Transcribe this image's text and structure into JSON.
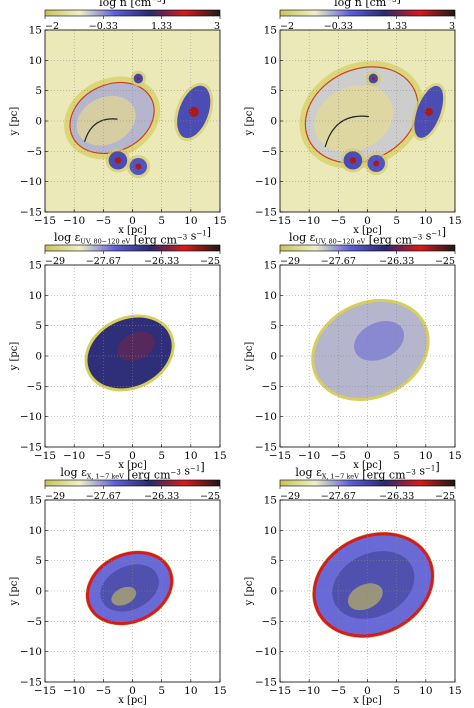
{
  "colormap": {
    "stops": [
      "#c9c25a",
      "#efefc8",
      "#5d5fd8",
      "#2a2a6e",
      "#d81a1a",
      "#1a1a1a"
    ],
    "background_low": "#efefc8"
  },
  "panels": [
    {
      "id": "density-early",
      "colorbar": {
        "label_prefix": "log n",
        "label_sub": "",
        "label_unit": "[cm",
        "label_sup": "−3",
        "label_close": "]",
        "ticks": [
          "−2",
          "−0.33",
          "1.33",
          "3"
        ],
        "range": [
          -2,
          3
        ]
      },
      "xlabel": "x [pc]",
      "ylabel": "y [pc]",
      "xticks": [
        "−15",
        "−10",
        "−5",
        "0",
        "5",
        "10",
        "15"
      ],
      "yticks": [
        "−15",
        "−10",
        "−5",
        "0",
        "5",
        "10",
        "15"
      ],
      "features": [
        {
          "kind": "shell",
          "cx": -3.5,
          "cy": 0.5,
          "rx": 7.5,
          "ry": 5.5,
          "rot": -25,
          "level": 0.62
        },
        {
          "kind": "cloud",
          "cx": 10.5,
          "cy": 1.5,
          "rx": 2.5,
          "ry": 4.5,
          "rot": 20,
          "level": 0.85
        },
        {
          "kind": "cloud",
          "cx": -2.5,
          "cy": -6.5,
          "rx": 1.6,
          "ry": 1.5,
          "rot": 0,
          "level": 0.85
        },
        {
          "kind": "cloud",
          "cx": 1.0,
          "cy": -7.5,
          "rx": 1.5,
          "ry": 1.4,
          "rot": 0,
          "level": 0.8
        },
        {
          "kind": "cloud",
          "cx": 1.0,
          "cy": 7.0,
          "rx": 0.8,
          "ry": 0.8,
          "rot": 0,
          "level": 0.9
        }
      ]
    },
    {
      "id": "density-late",
      "colorbar": {
        "label_prefix": "log n",
        "label_sub": "",
        "label_unit": "[cm",
        "label_sup": "−3",
        "label_close": "]",
        "ticks": [
          "−2",
          "−0.33",
          "1.33",
          "3"
        ],
        "range": [
          -2,
          3
        ]
      },
      "xlabel": "x [pc]",
      "ylabel": "y [pc]",
      "xticks": [
        "−15",
        "−10",
        "−5",
        "0",
        "5",
        "10",
        "15"
      ],
      "yticks": [
        "−15",
        "−10",
        "−5",
        "0",
        "5",
        "10",
        "15"
      ],
      "features": [
        {
          "kind": "shell",
          "cx": -1.0,
          "cy": 1.0,
          "rx": 10.0,
          "ry": 7.5,
          "rot": -25,
          "level": 0.55
        },
        {
          "kind": "cloud",
          "cx": 10.5,
          "cy": 1.5,
          "rx": 2.0,
          "ry": 4.5,
          "rot": 20,
          "level": 0.85
        },
        {
          "kind": "cloud",
          "cx": -2.5,
          "cy": -6.5,
          "rx": 1.6,
          "ry": 1.5,
          "rot": 0,
          "level": 0.85
        },
        {
          "kind": "cloud",
          "cx": 1.5,
          "cy": -7.0,
          "rx": 1.5,
          "ry": 1.4,
          "rot": 0,
          "level": 0.8
        },
        {
          "kind": "cloud",
          "cx": 1.0,
          "cy": 7.0,
          "rx": 0.8,
          "ry": 0.8,
          "rot": 0,
          "level": 0.9
        }
      ]
    },
    {
      "id": "uv-early",
      "colorbar": {
        "label_prefix": "log ε",
        "label_sub": "UV, 80−120 eV",
        "label_unit": "[erg cm",
        "label_sup": "−3",
        "label_close": " s",
        "label_sup2": "−1",
        "label_end": "]",
        "ticks": [
          "−29",
          "−27.67",
          "−26.33",
          "−25"
        ],
        "range": [
          -29,
          -25
        ]
      },
      "xlabel": "x [pc]",
      "ylabel": "y [pc]",
      "xticks": [
        "−15",
        "−10",
        "−5",
        "0",
        "5",
        "10",
        "15"
      ],
      "yticks": [
        "−15",
        "−10",
        "−5",
        "0",
        "5",
        "10",
        "15"
      ],
      "features": [
        {
          "kind": "emission",
          "cx": -0.5,
          "cy": 0.5,
          "rx": 7.5,
          "ry": 5.5,
          "rot": -25,
          "level": 0.58
        }
      ]
    },
    {
      "id": "uv-late",
      "colorbar": {
        "label_prefix": "log ε",
        "label_sub": "UV, 80−120 eV",
        "label_unit": "[erg cm",
        "label_sup": "−3",
        "label_close": " s",
        "label_sup2": "−1",
        "label_end": "]",
        "ticks": [
          "−29",
          "−27.67",
          "−26.33",
          "−25"
        ],
        "range": [
          -29,
          -25
        ]
      },
      "xlabel": "x [pc]",
      "ylabel": "y [pc]",
      "xticks": [
        "−15",
        "−10",
        "−5",
        "0",
        "5",
        "10",
        "15"
      ],
      "yticks": [
        "−15",
        "−10",
        "−5",
        "0",
        "5",
        "10",
        "15"
      ],
      "features": [
        {
          "kind": "emission",
          "cx": 0.5,
          "cy": 1.0,
          "rx": 10.0,
          "ry": 7.5,
          "rot": -25,
          "level": 0.28
        }
      ]
    },
    {
      "id": "xray-early",
      "colorbar": {
        "label_prefix": "log ε",
        "label_sub": "X, 1−7 keV",
        "label_unit": "[erg cm",
        "label_sup": "−3",
        "label_close": " s",
        "label_sup2": "−1",
        "label_end": "]",
        "ticks": [
          "−29",
          "−27.67",
          "−26.33",
          "−25"
        ],
        "range": [
          -29,
          -25
        ]
      },
      "xlabel": "x [pc]",
      "ylabel": "y [pc]",
      "xticks": [
        "−15",
        "−10",
        "−5",
        "0",
        "5",
        "10",
        "15"
      ],
      "yticks": [
        "−15",
        "−10",
        "−5",
        "0",
        "5",
        "10",
        "15"
      ],
      "features": [
        {
          "kind": "xray",
          "cx": -0.5,
          "cy": 0.5,
          "rx": 7.5,
          "ry": 5.5,
          "rot": -25,
          "level": 0.62
        }
      ]
    },
    {
      "id": "xray-late",
      "colorbar": {
        "label_prefix": "log ε",
        "label_sub": "X, 1−7 keV",
        "label_unit": "[erg cm",
        "label_sup": "−3",
        "label_close": " s",
        "label_sup2": "−1",
        "label_end": "]",
        "ticks": [
          "−29",
          "−27.67",
          "−26.33",
          "−25"
        ],
        "range": [
          -29,
          -25
        ]
      },
      "xlabel": "x [pc]",
      "ylabel": "y [pc]",
      "xticks": [
        "−15",
        "−10",
        "−5",
        "0",
        "5",
        "10",
        "15"
      ],
      "yticks": [
        "−15",
        "−10",
        "−5",
        "0",
        "5",
        "10",
        "15"
      ],
      "features": [
        {
          "kind": "xray",
          "cx": 1.0,
          "cy": 1.0,
          "rx": 10.5,
          "ry": 8.0,
          "rot": -25,
          "level": 0.55
        }
      ]
    }
  ],
  "chart_data": [
    {
      "type": "heatmap",
      "title": "log n [cm−3]",
      "xlabel": "x [pc]",
      "ylabel": "y [pc]",
      "xlim": [
        -15,
        15
      ],
      "ylim": [
        -15,
        15
      ],
      "colorbar_range": [
        -2,
        3
      ],
      "colorbar_ticks": [
        -2,
        -0.33,
        1.33,
        3
      ],
      "grid": true
    },
    {
      "type": "heatmap",
      "title": "log n [cm−3]",
      "xlabel": "x [pc]",
      "ylabel": "y [pc]",
      "xlim": [
        -15,
        15
      ],
      "ylim": [
        -15,
        15
      ],
      "colorbar_range": [
        -2,
        3
      ],
      "colorbar_ticks": [
        -2,
        -0.33,
        1.33,
        3
      ],
      "grid": true
    },
    {
      "type": "heatmap",
      "title": "log εUV, 80−120 eV [erg cm−3 s−1]",
      "xlabel": "x [pc]",
      "ylabel": "y [pc]",
      "xlim": [
        -15,
        15
      ],
      "ylim": [
        -15,
        15
      ],
      "colorbar_range": [
        -29,
        -25
      ],
      "colorbar_ticks": [
        -29,
        -27.67,
        -26.33,
        -25
      ],
      "grid": true
    },
    {
      "type": "heatmap",
      "title": "log εUV, 80−120 eV [erg cm−3 s−1]",
      "xlabel": "x [pc]",
      "ylabel": "y [pc]",
      "xlim": [
        -15,
        15
      ],
      "ylim": [
        -15,
        15
      ],
      "colorbar_range": [
        -29,
        -25
      ],
      "colorbar_ticks": [
        -29,
        -27.67,
        -26.33,
        -25
      ],
      "grid": true
    },
    {
      "type": "heatmap",
      "title": "log εX, 1−7 keV [erg cm−3 s−1]",
      "xlabel": "x [pc]",
      "ylabel": "y [pc]",
      "xlim": [
        -15,
        15
      ],
      "ylim": [
        -15,
        15
      ],
      "colorbar_range": [
        -29,
        -25
      ],
      "colorbar_ticks": [
        -29,
        -27.67,
        -26.33,
        -25
      ],
      "grid": true
    },
    {
      "type": "heatmap",
      "title": "log εX, 1−7 keV [erg cm−3 s−1]",
      "xlabel": "x [pc]",
      "ylabel": "y [pc]",
      "xlim": [
        -15,
        15
      ],
      "ylim": [
        -15,
        15
      ],
      "colorbar_range": [
        -29,
        -25
      ],
      "colorbar_ticks": [
        -29,
        -27.67,
        -26.33,
        -25
      ],
      "grid": true
    }
  ]
}
